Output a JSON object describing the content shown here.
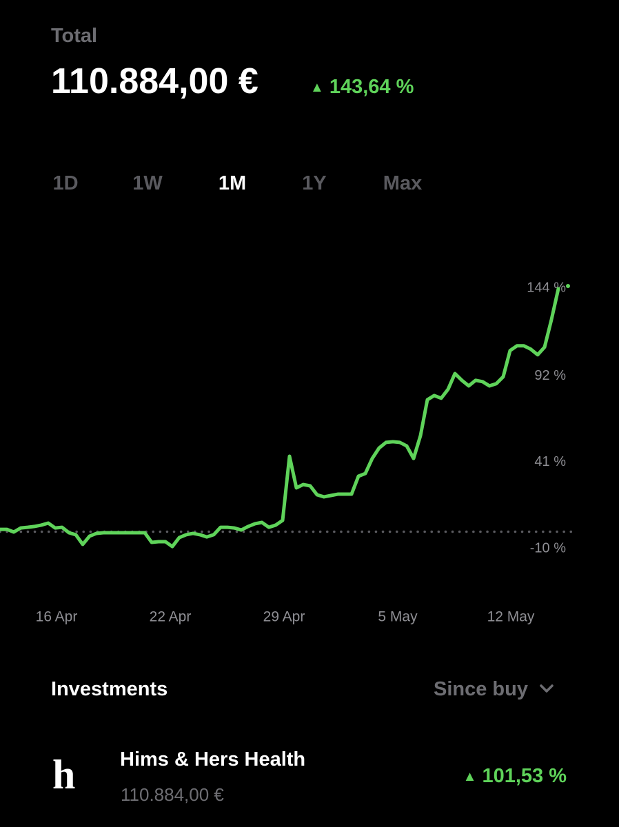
{
  "header": {
    "label": "Total",
    "value": "110.884,00 €",
    "change": "143,64 %"
  },
  "periods": [
    "1D",
    "1W",
    "1M",
    "1Y",
    "Max"
  ],
  "selected_period": 2,
  "chart_data": {
    "type": "line",
    "series": [
      {
        "color": "#5fd35a",
        "values": [
          1.4,
          1.4,
          -0.2,
          2.2,
          2.6,
          3.1,
          3.9,
          5.1,
          2.2,
          2.6,
          -0.6,
          -1.8,
          -7.5,
          -2.6,
          -1.0,
          -0.6,
          -0.6,
          -0.6,
          -0.6,
          -0.6,
          -0.6,
          -0.6,
          -6.3,
          -5.9,
          -5.9,
          -8.8,
          -3.5,
          -1.8,
          -1.0,
          -1.8,
          -3.1,
          -1.8,
          2.6,
          2.6,
          2.2,
          1.0,
          3.1,
          4.7,
          5.5,
          2.6,
          3.9,
          6.7,
          44.6,
          25.9,
          27.9,
          27.1,
          21.8,
          20.6,
          21.4,
          22.2,
          22.2,
          22.2,
          32.8,
          34.4,
          43.3,
          49.5,
          52.8,
          53.2,
          52.8,
          50.7,
          43.3,
          56.8,
          78.0,
          80.5,
          78.9,
          84.2,
          93.5,
          89.5,
          86.2,
          89.5,
          88.7,
          86.2,
          87.5,
          91.6,
          107.1,
          109.9,
          109.9,
          107.9,
          104.6,
          109.1,
          125.4,
          143.6
        ]
      }
    ],
    "xlim": [
      0,
      81
    ],
    "xticks": [
      {
        "value": 8.2,
        "label": "16 Apr"
      },
      {
        "value": 24.7,
        "label": "22 Apr"
      },
      {
        "value": 41.2,
        "label": "29 Apr"
      },
      {
        "value": 57.7,
        "label": "5 May"
      },
      {
        "value": 74.1,
        "label": "12 May"
      }
    ],
    "ylim": [
      -20,
      160
    ],
    "yticks": [
      {
        "value": -10,
        "label": "-10 %"
      },
      {
        "value": 41,
        "label": "41 %"
      },
      {
        "value": 92,
        "label": "92 %"
      },
      {
        "value": 144,
        "label": "144 %"
      }
    ],
    "baseline": 0
  },
  "investments": {
    "title": "Investments",
    "sort": "Since buy",
    "holdings": [
      {
        "logo": "h",
        "name": "Hims & Hers Health",
        "value": "110.884,00 €",
        "change": "101,53 %"
      }
    ]
  }
}
